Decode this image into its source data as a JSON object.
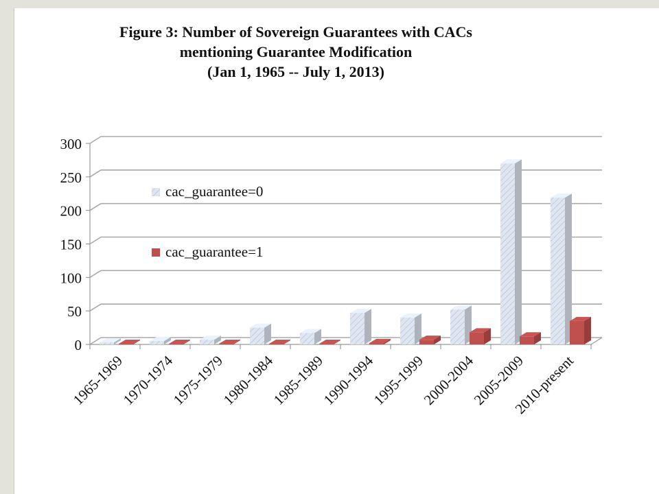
{
  "chart_data": {
    "type": "bar",
    "title": "Figure 3: Number of Sovereign Guarantees with CACs",
    "subtitle": "mentioning Guarantee Modification",
    "date_range": "(Jan 1, 1965 -- July 1, 2013)",
    "xlabel": "",
    "ylabel": "",
    "ylim": [
      0,
      300
    ],
    "yticks": [
      0,
      50,
      100,
      150,
      200,
      250,
      300
    ],
    "grid": true,
    "legend_position": "left-inside",
    "categories": [
      "1965-1969",
      "1970-1974",
      "1975-1979",
      "1980-1984",
      "1985-1989",
      "1990-1994",
      "1995-1999",
      "2000-2004",
      "2005-2009",
      "2010-present"
    ],
    "series": [
      {
        "name": "cac_guarantee=0",
        "color": "#dfe6f1",
        "values": [
          3,
          5,
          7,
          25,
          17,
          47,
          40,
          52,
          270,
          219
        ]
      },
      {
        "name": "cac_guarantee=1",
        "color": "#c0504d",
        "values": [
          1,
          1,
          1,
          1,
          1,
          2,
          7,
          18,
          12,
          35
        ]
      }
    ]
  }
}
